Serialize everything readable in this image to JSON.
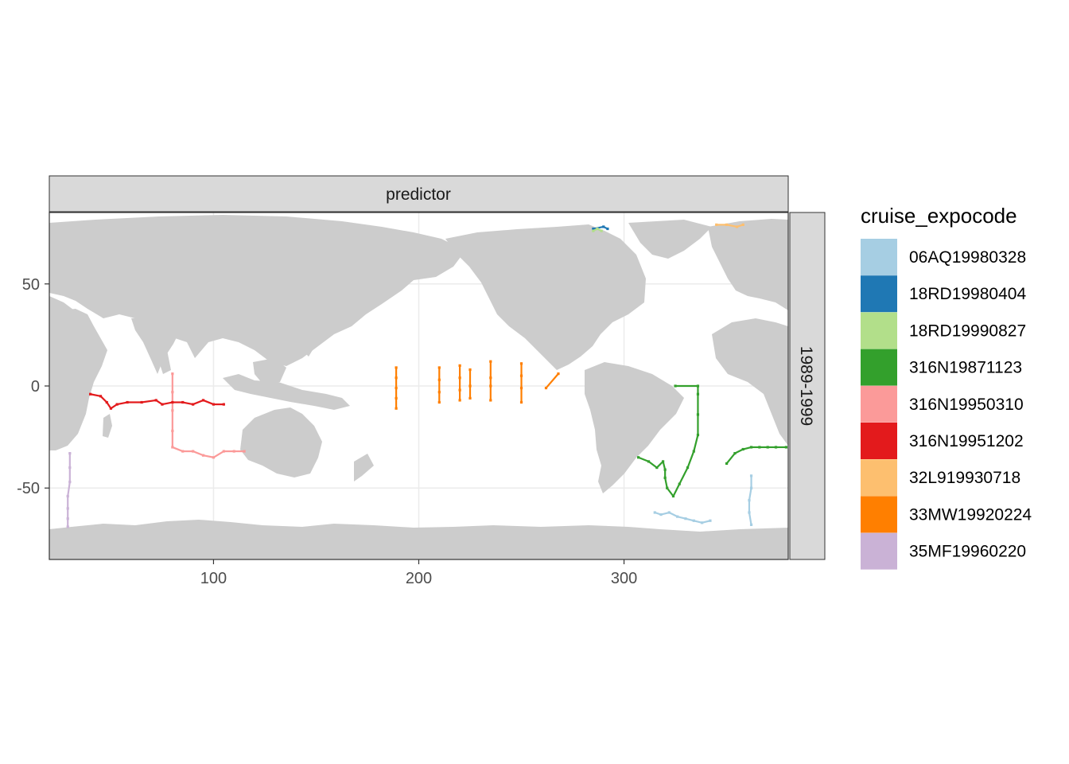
{
  "facet": {
    "column_label": "predictor",
    "row_label": "1989-1999"
  },
  "colors": {
    "land": "#cccccc",
    "ocean": "#ffffff",
    "grid": "#ebebeb",
    "strip_fill": "#d9d9d9",
    "panel_border": "#333333"
  },
  "chart_data": {
    "type": "scatter",
    "xlim": [
      20,
      380
    ],
    "ylim": [
      -85,
      85
    ],
    "x_ticks": [
      100,
      200,
      300
    ],
    "y_ticks": [
      50,
      0,
      -50
    ],
    "grid": true,
    "legend": {
      "title": "cruise_expocode",
      "position": "right",
      "entries": [
        {
          "label": "06AQ19980328",
          "color": "#a6cee3"
        },
        {
          "label": "18RD19980404",
          "color": "#1f78b4"
        },
        {
          "label": "18RD19990827",
          "color": "#b2df8a"
        },
        {
          "label": "316N19871123",
          "color": "#33a02c"
        },
        {
          "label": "316N19950310",
          "color": "#fb9a99"
        },
        {
          "label": "316N19951202",
          "color": "#e31a1c"
        },
        {
          "label": "32L919930718",
          "color": "#fdbf6f"
        },
        {
          "label": "33MW19920224",
          "color": "#ff7f00"
        },
        {
          "label": "35MF19960220",
          "color": "#cab2d6"
        }
      ]
    },
    "series": [
      {
        "name": "06AQ19980328",
        "color": "#a6cee3",
        "points": [
          [
            315,
            -62
          ],
          [
            318,
            -63
          ],
          [
            322,
            -62
          ],
          [
            326,
            -64
          ],
          [
            330,
            -65
          ],
          [
            334,
            -66
          ],
          [
            338,
            -67
          ],
          [
            342,
            -66
          ],
          [
            362,
            -44
          ],
          [
            362,
            -50
          ],
          [
            361,
            -56
          ],
          [
            361,
            -62
          ],
          [
            362,
            -68
          ]
        ]
      },
      {
        "name": "18RD19980404",
        "color": "#1f78b4",
        "points": [
          [
            285,
            77
          ],
          [
            290,
            78
          ],
          [
            292,
            77
          ]
        ]
      },
      {
        "name": "18RD19990827",
        "color": "#b2df8a",
        "points": [
          [
            285,
            76
          ],
          [
            287,
            77
          ],
          [
            289,
            76
          ]
        ]
      },
      {
        "name": "316N19871123",
        "color": "#33a02c",
        "points": [
          [
            307,
            -35
          ],
          [
            312,
            -37
          ],
          [
            316,
            -40
          ],
          [
            319,
            -37
          ],
          [
            320,
            -41
          ],
          [
            320,
            -45
          ],
          [
            321,
            -50
          ],
          [
            324,
            -54
          ],
          [
            327,
            -48
          ],
          [
            331,
            -40
          ],
          [
            334,
            -32
          ],
          [
            336,
            -24
          ],
          [
            336,
            -14
          ],
          [
            336,
            -4
          ],
          [
            336,
            0
          ],
          [
            325,
            0
          ],
          [
            350,
            -38
          ],
          [
            354,
            -33
          ],
          [
            358,
            -31
          ],
          [
            362,
            -30
          ],
          [
            366,
            -30
          ],
          [
            370,
            -30
          ],
          [
            374,
            -30
          ],
          [
            379,
            -30
          ]
        ]
      },
      {
        "name": "316N19950310",
        "color": "#fb9a99",
        "points": [
          [
            80,
            6
          ],
          [
            80,
            -3
          ],
          [
            80,
            -12
          ],
          [
            80,
            -22
          ],
          [
            80,
            -30
          ],
          [
            85,
            -32
          ],
          [
            90,
            -32
          ],
          [
            95,
            -34
          ],
          [
            100,
            -35
          ],
          [
            105,
            -32
          ],
          [
            110,
            -32
          ],
          [
            115,
            -32
          ]
        ]
      },
      {
        "name": "316N19951202",
        "color": "#e31a1c",
        "points": [
          [
            40,
            -4
          ],
          [
            45,
            -5
          ],
          [
            48,
            -8
          ],
          [
            50,
            -11
          ],
          [
            53,
            -9
          ],
          [
            58,
            -8
          ],
          [
            65,
            -8
          ],
          [
            72,
            -7
          ],
          [
            75,
            -9
          ],
          [
            80,
            -8
          ],
          [
            85,
            -8
          ],
          [
            90,
            -9
          ],
          [
            95,
            -7
          ],
          [
            100,
            -9
          ],
          [
            105,
            -9
          ]
        ]
      },
      {
        "name": "32L919930718",
        "color": "#fdbf6f",
        "points": [
          [
            345,
            79
          ],
          [
            350,
            79
          ],
          [
            355,
            78
          ],
          [
            358,
            79
          ]
        ]
      },
      {
        "name": "33MW19920224",
        "color": "#ff7f00",
        "points": [
          [
            189,
            9
          ],
          [
            189,
            4
          ],
          [
            189,
            -1
          ],
          [
            189,
            -6
          ],
          [
            189,
            -11
          ],
          [
            210,
            9
          ],
          [
            210,
            3
          ],
          [
            210,
            -3
          ],
          [
            210,
            -8
          ],
          [
            220,
            10
          ],
          [
            220,
            4
          ],
          [
            220,
            -2
          ],
          [
            220,
            -7
          ],
          [
            225,
            8
          ],
          [
            225,
            0
          ],
          [
            225,
            -6
          ],
          [
            235,
            12
          ],
          [
            235,
            4
          ],
          [
            235,
            0
          ],
          [
            235,
            -7
          ],
          [
            250,
            11
          ],
          [
            250,
            5
          ],
          [
            250,
            -1
          ],
          [
            250,
            -8
          ],
          [
            262,
            -1
          ],
          [
            268,
            6
          ]
        ]
      },
      {
        "name": "35MF19960220",
        "color": "#cab2d6",
        "points": [
          [
            30,
            -33
          ],
          [
            30,
            -40
          ],
          [
            30,
            -47
          ],
          [
            29,
            -54
          ],
          [
            29,
            -60
          ],
          [
            29,
            -65
          ],
          [
            29,
            -69
          ]
        ]
      }
    ]
  }
}
